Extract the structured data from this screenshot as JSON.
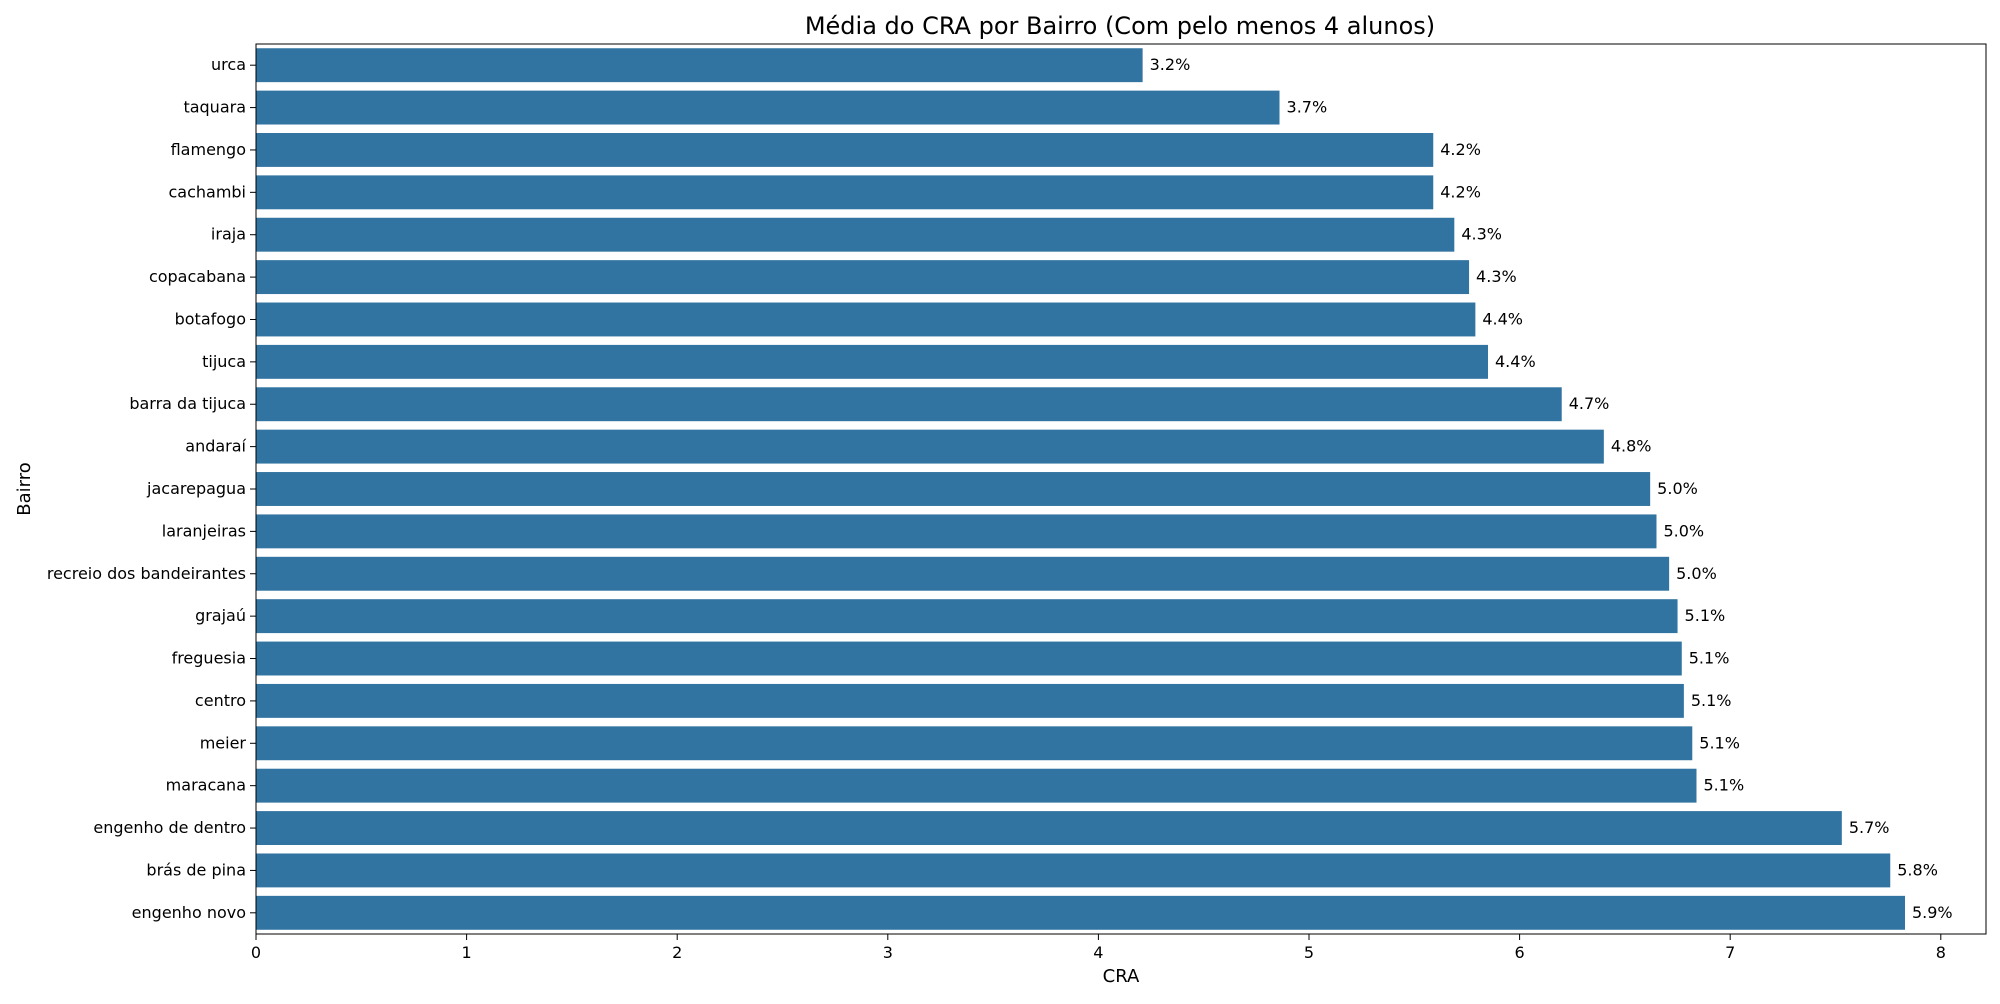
{
  "chart_data": {
    "type": "bar",
    "orientation": "horizontal",
    "title": "Média do CRA por Bairro (Com pelo menos 4 alunos)",
    "xlabel": "CRA",
    "ylabel": "Bairro",
    "xlim": [
      0,
      8.2
    ],
    "xticks": [
      "0",
      "1",
      "2",
      "3",
      "4",
      "5",
      "6",
      "7",
      "8"
    ],
    "grid": false,
    "legend": "none",
    "bar_color": "#3274a1",
    "categories": [
      "urca",
      "taquara",
      "flamengo",
      "cachambi",
      "iraja",
      "copacabana",
      "botafogo",
      "tijuca",
      "barra da tijuca",
      "andaraí",
      "jacarepagua",
      "laranjeiras",
      "recreio dos bandeirantes",
      "grajaú",
      "freguesia",
      "centro",
      "meier",
      "maracana",
      "engenho de dentro",
      "brás de pina",
      "engenho novo"
    ],
    "values": [
      4.21,
      4.86,
      5.59,
      5.59,
      5.69,
      5.76,
      5.79,
      5.85,
      6.2,
      6.4,
      6.62,
      6.65,
      6.71,
      6.75,
      6.77,
      6.78,
      6.82,
      6.84,
      7.53,
      7.76,
      7.83
    ],
    "data_labels": [
      "3.2%",
      "3.7%",
      "4.2%",
      "4.2%",
      "4.3%",
      "4.3%",
      "4.4%",
      "4.4%",
      "4.7%",
      "4.8%",
      "5.0%",
      "5.0%",
      "5.0%",
      "5.1%",
      "5.1%",
      "5.1%",
      "5.1%",
      "5.1%",
      "5.7%",
      "5.8%",
      "5.9%"
    ]
  }
}
